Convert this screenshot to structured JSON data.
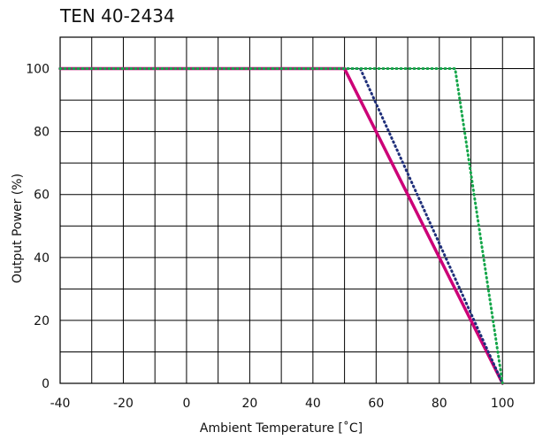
{
  "chart_data": {
    "type": "line",
    "title": "TEN 40-2434",
    "xlabel": "Ambient Temperature [˚C]",
    "ylabel": "Output Power (%)",
    "xlim": [
      -40,
      110
    ],
    "ylim": [
      0,
      110
    ],
    "grid": true,
    "x_ticks": [
      -40,
      -20,
      0,
      20,
      40,
      60,
      80,
      100
    ],
    "y_ticks": [
      0,
      20,
      40,
      60,
      80,
      100
    ],
    "series": [
      {
        "color": "#cc0077",
        "style": "solid",
        "points": [
          [
            -40,
            100
          ],
          [
            50,
            100
          ],
          [
            100,
            0
          ]
        ]
      },
      {
        "color": "#1f2f7a",
        "style": "dotted",
        "points": [
          [
            -40,
            100
          ],
          [
            55,
            100
          ],
          [
            100,
            0
          ]
        ]
      },
      {
        "color": "#15a64a",
        "style": "dotted",
        "points": [
          [
            -40,
            100
          ],
          [
            85,
            100
          ],
          [
            100,
            0
          ]
        ]
      }
    ]
  }
}
